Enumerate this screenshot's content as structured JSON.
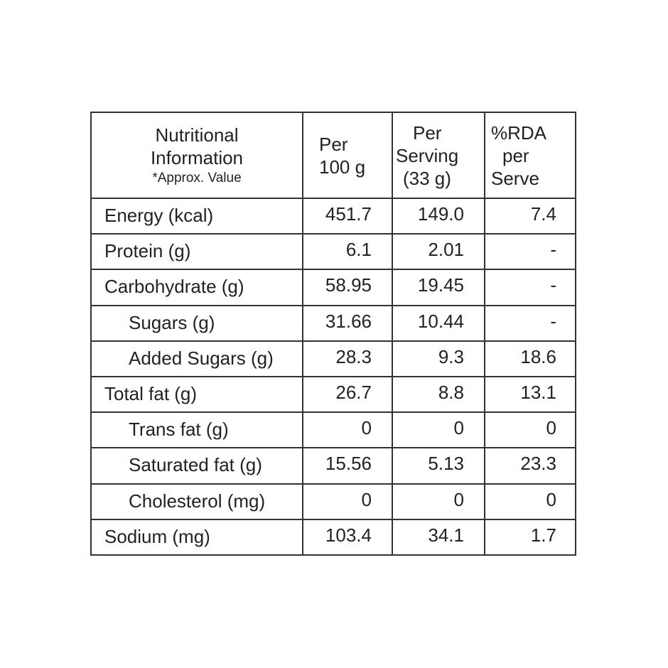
{
  "table": {
    "header": [
      [
        "Nutritional",
        "Information",
        "*Approx. Value"
      ],
      [
        "Per",
        "100 g"
      ],
      [
        "Per",
        "Serving",
        "(33 g)"
      ],
      [
        "%RDA",
        "per",
        "Serve"
      ]
    ],
    "rows": [
      {
        "cells": [
          "Energy (kcal)",
          "451.7",
          "149.0",
          "7.4"
        ],
        "indent": false
      },
      {
        "cells": [
          "Protein (g)",
          "6.1",
          "2.01",
          "-"
        ],
        "indent": false
      },
      {
        "cells": [
          "Carbohydrate (g)",
          "58.95",
          "19.45",
          "-"
        ],
        "indent": false
      },
      {
        "cells": [
          "Sugars (g)",
          "31.66",
          "10.44",
          "-"
        ],
        "indent": true
      },
      {
        "cells": [
          "Added Sugars (g)",
          "28.3",
          "9.3",
          "18.6"
        ],
        "indent": true
      },
      {
        "cells": [
          "Total fat (g)",
          "26.7",
          "8.8",
          "13.1"
        ],
        "indent": false
      },
      {
        "cells": [
          "Trans fat (g)",
          "0",
          "0",
          "0"
        ],
        "indent": true
      },
      {
        "cells": [
          "Saturated fat (g)",
          "15.56",
          "5.13",
          "23.3"
        ],
        "indent": true
      },
      {
        "cells": [
          "Cholesterol (mg)",
          "0",
          "0",
          "0"
        ],
        "indent": true
      },
      {
        "cells": [
          "Sodium (mg)",
          "103.4",
          "34.1",
          "1.7"
        ],
        "indent": false
      }
    ]
  }
}
